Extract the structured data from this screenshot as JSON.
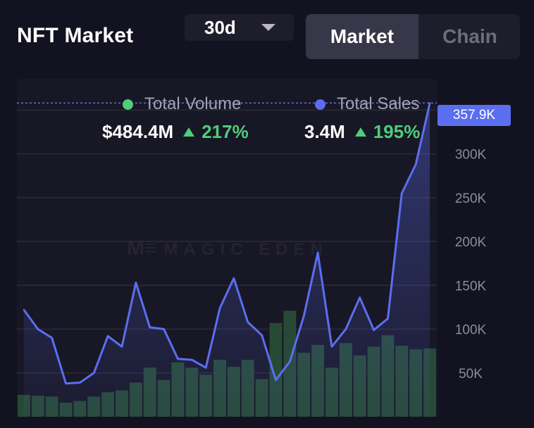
{
  "header": {
    "title": "NFT Market",
    "period": "30d",
    "tabs": [
      {
        "label": "Market",
        "active": true
      },
      {
        "label": "Chain",
        "active": false
      }
    ]
  },
  "legend": {
    "volume": {
      "label": "Total Volume",
      "value": "$484.4M",
      "change": "217%",
      "color": "#4fcd7a"
    },
    "sales": {
      "label": "Total Sales",
      "value": "3.4M",
      "change": "195%",
      "color": "#5b6ef0"
    }
  },
  "watermark": "MAGIC EDEN",
  "current_value_label": "357.9K",
  "colors": {
    "background": "#131220",
    "panel": "#181725",
    "line": "#5b6ef0",
    "bar": "#274a36",
    "up": "#4fcd7a"
  },
  "chart_data": {
    "type": "line",
    "title": "",
    "xlabel": "",
    "ylabel": "",
    "ylim": [
      0,
      380000
    ],
    "yticks": [
      "50K",
      "100K",
      "150K",
      "200K",
      "250K",
      "300K"
    ],
    "series": [
      {
        "name": "Total Sales",
        "type": "line",
        "values": [
          122000,
          100000,
          90000,
          38000,
          39000,
          50000,
          92000,
          80000,
          153000,
          102000,
          100000,
          66000,
          65000,
          56000,
          124000,
          158000,
          108000,
          93000,
          42000,
          63000,
          115000,
          187000,
          80000,
          100000,
          136000,
          99000,
          112000,
          255000,
          288000,
          358000
        ]
      },
      {
        "name": "Total Volume",
        "type": "bar",
        "values": [
          25000,
          24000,
          23000,
          16000,
          18000,
          23000,
          28000,
          30000,
          39000,
          56000,
          42000,
          62000,
          56000,
          48000,
          65000,
          57000,
          65000,
          43000,
          107000,
          121000,
          73000,
          82000,
          56000,
          84000,
          70000,
          80000,
          93000,
          81000,
          77000,
          78000
        ]
      }
    ]
  }
}
